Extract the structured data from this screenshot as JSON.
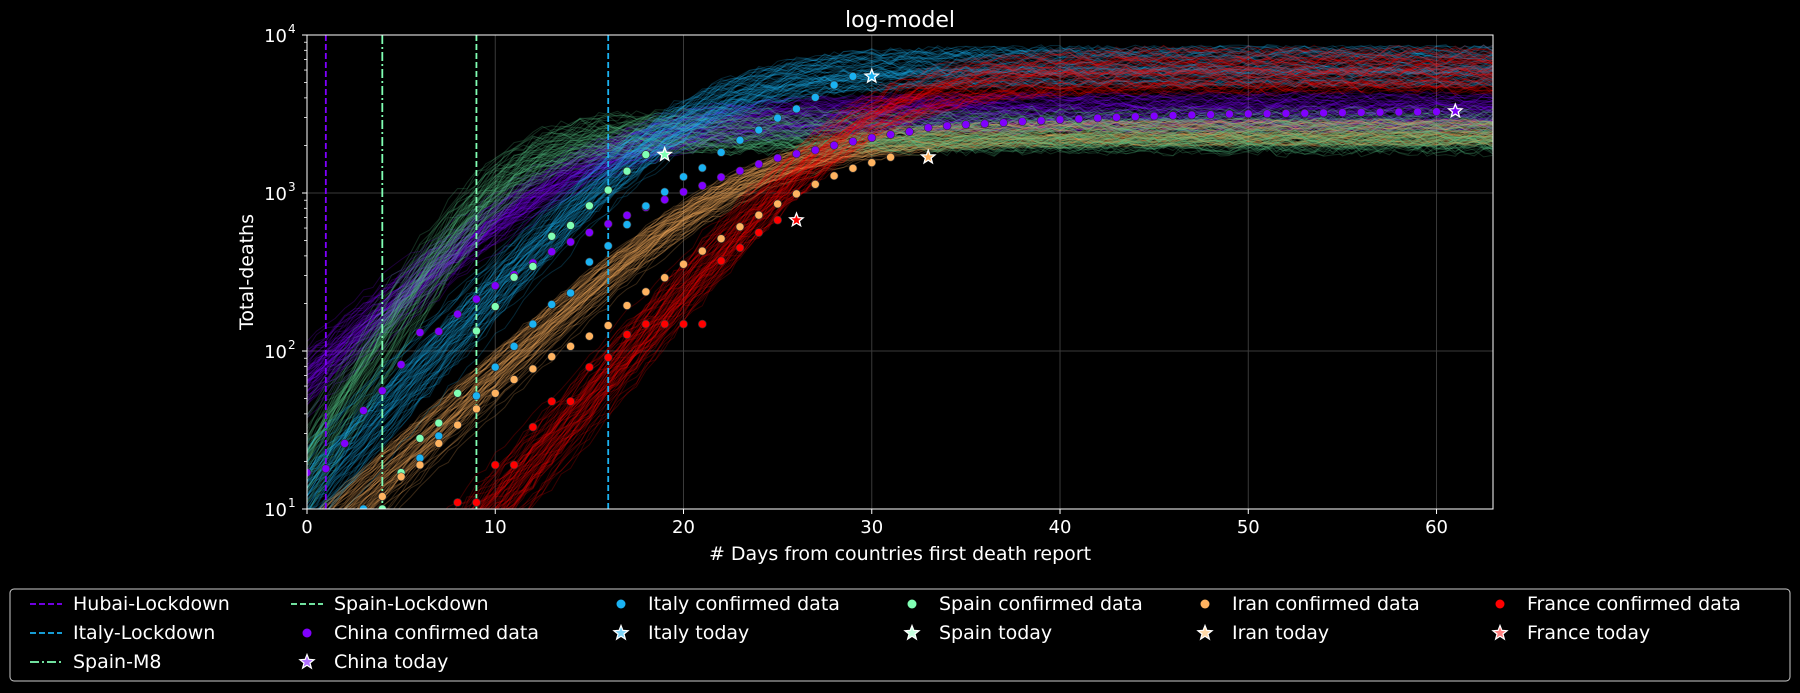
{
  "chart_data": {
    "type": "line",
    "title": "log-model",
    "xlabel": "# Days from countries first death report",
    "ylabel": "Total-deaths",
    "xlim": [
      0,
      63
    ],
    "ylim": [
      10,
      10000
    ],
    "yscale": "log",
    "x_ticks": [
      0,
      10,
      20,
      30,
      40,
      50,
      60
    ],
    "y_ticks": [
      {
        "value": 10,
        "base": "10",
        "exp": "1"
      },
      {
        "value": 100,
        "base": "10",
        "exp": "2"
      },
      {
        "value": 1000,
        "base": "10",
        "exp": "3"
      },
      {
        "value": 10000,
        "base": "10",
        "exp": "4"
      }
    ],
    "grid": true,
    "legend_placement": "below plot, 6 columns",
    "lockdowns": [
      {
        "name": "Hubai-Lockdown",
        "x": 1,
        "color": "#8000ff",
        "style": "dashed"
      },
      {
        "name": "Italy-Lockdown",
        "x": 16,
        "color": "#1ab2f2",
        "style": "dashed"
      },
      {
        "name": "Spain-M8",
        "x": 4,
        "color": "#80ffb4",
        "style": "dashdot"
      },
      {
        "name": "Spain-Lockdown",
        "x": 9,
        "color": "#80ffb4",
        "style": "dashed"
      }
    ],
    "series": [
      {
        "country": "China",
        "color": "#8000ff",
        "bandColor": "#8000ff",
        "confirmed_label": "China confirmed data",
        "today_label": "China today",
        "today": {
          "x": 61,
          "y": 3300
        },
        "model": {
          "K": 3200,
          "r": 0.25,
          "t0": 15.5,
          "spread": 0.12
        },
        "confirmed": [
          [
            0,
            17
          ],
          [
            1,
            18
          ],
          [
            2,
            26
          ],
          [
            3,
            42
          ],
          [
            4,
            56
          ],
          [
            5,
            82
          ],
          [
            6,
            131
          ],
          [
            7,
            133
          ],
          [
            8,
            171
          ],
          [
            9,
            213
          ],
          [
            10,
            259
          ],
          [
            11,
            304
          ],
          [
            12,
            361
          ],
          [
            13,
            425
          ],
          [
            14,
            490
          ],
          [
            15,
            562
          ],
          [
            16,
            637
          ],
          [
            17,
            722
          ],
          [
            18,
            811
          ],
          [
            19,
            908
          ],
          [
            20,
            1016
          ],
          [
            21,
            1113
          ],
          [
            22,
            1259
          ],
          [
            23,
            1380
          ],
          [
            24,
            1523
          ],
          [
            25,
            1665
          ],
          [
            26,
            1770
          ],
          [
            27,
            1868
          ],
          [
            28,
            2004
          ],
          [
            29,
            2118
          ],
          [
            30,
            2236
          ],
          [
            31,
            2345
          ],
          [
            32,
            2442
          ],
          [
            33,
            2592
          ],
          [
            34,
            2663
          ],
          [
            35,
            2715
          ],
          [
            36,
            2744
          ],
          [
            37,
            2788
          ],
          [
            38,
            2835
          ],
          [
            39,
            2870
          ],
          [
            40,
            2912
          ],
          [
            41,
            2943
          ],
          [
            42,
            2981
          ],
          [
            43,
            3012
          ],
          [
            44,
            3042
          ],
          [
            45,
            3070
          ],
          [
            46,
            3097
          ],
          [
            47,
            3119
          ],
          [
            48,
            3136
          ],
          [
            49,
            3158
          ],
          [
            50,
            3169
          ],
          [
            51,
            3176
          ],
          [
            52,
            3189
          ],
          [
            53,
            3199
          ],
          [
            54,
            3213
          ],
          [
            55,
            3226
          ],
          [
            56,
            3237
          ],
          [
            57,
            3245
          ],
          [
            58,
            3255
          ],
          [
            59,
            3261
          ],
          [
            60,
            3270
          ],
          [
            61,
            3277
          ]
        ]
      },
      {
        "country": "Italy",
        "color": "#1ab2f2",
        "bandColor": "#1ab2f2",
        "confirmed_label": "Italy confirmed data",
        "today_label": "Italy today",
        "today": {
          "x": 30,
          "y": 5476
        },
        "model": {
          "K": 6300,
          "r": 0.3,
          "t0": 20.8,
          "spread": 0.12
        },
        "confirmed": [
          [
            0,
            2
          ],
          [
            1,
            3
          ],
          [
            2,
            7
          ],
          [
            3,
            10
          ],
          [
            4,
            12
          ],
          [
            5,
            17
          ],
          [
            6,
            21
          ],
          [
            7,
            29
          ],
          [
            8,
            34
          ],
          [
            9,
            52
          ],
          [
            10,
            79
          ],
          [
            11,
            107
          ],
          [
            12,
            148
          ],
          [
            13,
            197
          ],
          [
            14,
            233
          ],
          [
            15,
            366
          ],
          [
            16,
            463
          ],
          [
            17,
            631
          ],
          [
            18,
            827
          ],
          [
            19,
            1016
          ],
          [
            20,
            1266
          ],
          [
            21,
            1441
          ],
          [
            22,
            1809
          ],
          [
            23,
            2158
          ],
          [
            24,
            2503
          ],
          [
            25,
            2978
          ],
          [
            26,
            3405
          ],
          [
            27,
            4032
          ],
          [
            28,
            4825
          ],
          [
            29,
            5476
          ]
        ]
      },
      {
        "country": "Spain",
        "color": "#80ffb4",
        "bandColor": "#58c98a",
        "confirmed_label": "Spain confirmed data",
        "today_label": "Spain today",
        "today": {
          "x": 19,
          "y": 1750
        },
        "model": {
          "K": 2500,
          "r": 0.45,
          "t0": 10.5,
          "spread": 0.15
        },
        "confirmed": [
          [
            0,
            1
          ],
          [
            1,
            2
          ],
          [
            2,
            3
          ],
          [
            3,
            5
          ],
          [
            4,
            10
          ],
          [
            5,
            17
          ],
          [
            6,
            28
          ],
          [
            7,
            35
          ],
          [
            8,
            54
          ],
          [
            9,
            134
          ],
          [
            10,
            191
          ],
          [
            11,
            293
          ],
          [
            12,
            343
          ],
          [
            13,
            532
          ],
          [
            14,
            623
          ],
          [
            15,
            830
          ],
          [
            16,
            1043
          ],
          [
            17,
            1375
          ],
          [
            18,
            1750
          ]
        ]
      },
      {
        "country": "Iran",
        "color": "#ffb360",
        "bandColor": "#ffb360",
        "confirmed_label": "Iran confirmed data",
        "today_label": "Iran today",
        "today": {
          "x": 33,
          "y": 1685
        },
        "model": {
          "K": 2400,
          "r": 0.26,
          "t0": 23.5,
          "spread": 0.08
        },
        "confirmed": [
          [
            0,
            2
          ],
          [
            1,
            4
          ],
          [
            2,
            5
          ],
          [
            3,
            8
          ],
          [
            4,
            12
          ],
          [
            5,
            16
          ],
          [
            6,
            19
          ],
          [
            7,
            26
          ],
          [
            8,
            34
          ],
          [
            9,
            43
          ],
          [
            10,
            54
          ],
          [
            11,
            66
          ],
          [
            12,
            77
          ],
          [
            13,
            92
          ],
          [
            14,
            107
          ],
          [
            15,
            124
          ],
          [
            16,
            145
          ],
          [
            17,
            194
          ],
          [
            18,
            237
          ],
          [
            19,
            291
          ],
          [
            20,
            354
          ],
          [
            21,
            429
          ],
          [
            22,
            514
          ],
          [
            23,
            611
          ],
          [
            24,
            724
          ],
          [
            25,
            853
          ],
          [
            26,
            988
          ],
          [
            27,
            1135
          ],
          [
            28,
            1284
          ],
          [
            29,
            1433
          ],
          [
            30,
            1556
          ],
          [
            31,
            1685
          ]
        ]
      },
      {
        "country": "France",
        "color": "#ff0000",
        "bandColor": "#ff0000",
        "confirmed_label": "France confirmed data",
        "today_label": "France today",
        "today": {
          "x": 26,
          "y": 674
        },
        "model": {
          "K": 6000,
          "r": 0.32,
          "t0": 30,
          "spread": 0.14
        },
        "confirmed": [
          [
            7,
            9
          ],
          [
            8,
            11
          ],
          [
            9,
            11
          ],
          [
            10,
            19
          ],
          [
            11,
            19
          ],
          [
            12,
            33
          ],
          [
            13,
            48
          ],
          [
            14,
            48
          ],
          [
            15,
            79
          ],
          [
            16,
            91
          ],
          [
            17,
            127
          ],
          [
            18,
            148
          ],
          [
            19,
            148
          ],
          [
            20,
            148
          ],
          [
            21,
            148
          ],
          [
            22,
            372
          ],
          [
            23,
            450
          ],
          [
            24,
            562
          ],
          [
            25,
            674
          ]
        ]
      }
    ],
    "legend": [
      {
        "label": "Hubai-Lockdown",
        "kind": "dash",
        "color": "#8000ff"
      },
      {
        "label": "Italy-Lockdown",
        "kind": "dash",
        "color": "#1ab2f2"
      },
      {
        "label": "Spain-M8",
        "kind": "dashdot",
        "color": "#80ffb4"
      },
      {
        "label": "Spain-Lockdown",
        "kind": "dash",
        "color": "#80ffb4"
      },
      {
        "label": "China confirmed data",
        "kind": "dot",
        "color": "#8000ff"
      },
      {
        "label": "China today",
        "kind": "star",
        "color": "#b070ff"
      },
      {
        "label": "Italy confirmed data",
        "kind": "dot",
        "color": "#1ab2f2"
      },
      {
        "label": "Italy today",
        "kind": "star",
        "color": "#7fd4f8"
      },
      {
        "label": "Spain confirmed data",
        "kind": "dot",
        "color": "#80ffb4"
      },
      {
        "label": "Spain today",
        "kind": "star",
        "color": "#c6ffe0"
      },
      {
        "label": "Iran confirmed data",
        "kind": "dot",
        "color": "#ffb360"
      },
      {
        "label": "Iran today",
        "kind": "star",
        "color": "#ffd9a8"
      },
      {
        "label": "France confirmed data",
        "kind": "dot",
        "color": "#ff0000"
      },
      {
        "label": "France today",
        "kind": "star",
        "color": "#ff8080"
      }
    ]
  }
}
